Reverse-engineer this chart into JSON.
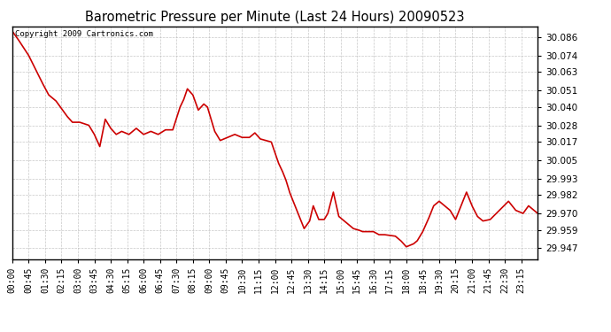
{
  "title": "Barometric Pressure per Minute (Last 24 Hours) 20090523",
  "copyright": "Copyright 2009 Cartronics.com",
  "line_color": "#cc0000",
  "background_color": "#ffffff",
  "plot_bg_color": "#ffffff",
  "grid_color": "#b0b0b0",
  "yticks": [
    29.947,
    29.959,
    29.97,
    29.982,
    29.993,
    30.005,
    30.017,
    30.028,
    30.04,
    30.051,
    30.063,
    30.074,
    30.086
  ],
  "ylim": [
    29.94,
    30.093
  ],
  "xtick_labels": [
    "00:00",
    "00:45",
    "01:30",
    "02:15",
    "03:00",
    "03:45",
    "04:30",
    "05:15",
    "06:00",
    "06:45",
    "07:30",
    "08:15",
    "09:00",
    "09:45",
    "10:30",
    "11:15",
    "12:00",
    "12:45",
    "13:30",
    "14:15",
    "15:00",
    "15:45",
    "16:30",
    "17:15",
    "18:00",
    "18:45",
    "19:30",
    "20:15",
    "21:00",
    "21:45",
    "22:30",
    "23:15"
  ],
  "key_points_x": [
    0,
    15,
    45,
    80,
    100,
    120,
    150,
    165,
    185,
    210,
    225,
    240,
    255,
    270,
    285,
    300,
    320,
    340,
    360,
    380,
    400,
    420,
    440,
    460,
    470,
    480,
    495,
    510,
    525,
    535,
    555,
    570,
    590,
    610,
    630,
    650,
    665,
    680,
    695,
    710,
    720,
    730,
    740,
    750,
    760,
    770,
    780,
    790,
    800,
    815,
    825,
    840,
    855,
    865,
    880,
    895,
    905,
    915,
    925,
    935,
    950,
    960,
    975,
    990,
    1005,
    1020,
    1050,
    1065,
    1080,
    1100,
    1110,
    1125,
    1140,
    1155,
    1170,
    1185,
    1200,
    1215,
    1230,
    1245,
    1260,
    1275,
    1290,
    1310,
    1335,
    1360,
    1380,
    1400,
    1415,
    1430,
    1440
  ],
  "key_points_y": [
    30.09,
    30.085,
    30.074,
    30.057,
    30.048,
    30.044,
    30.034,
    30.03,
    30.03,
    30.028,
    30.022,
    30.014,
    30.032,
    30.026,
    30.022,
    30.024,
    30.022,
    30.026,
    30.022,
    30.024,
    30.022,
    30.025,
    30.025,
    30.04,
    30.045,
    30.052,
    30.048,
    30.038,
    30.042,
    30.04,
    30.024,
    30.018,
    30.02,
    30.022,
    30.02,
    30.02,
    30.023,
    30.019,
    30.018,
    30.017,
    30.01,
    30.003,
    29.998,
    29.992,
    29.984,
    29.978,
    29.972,
    29.966,
    29.96,
    29.965,
    29.975,
    29.966,
    29.966,
    29.97,
    29.984,
    29.968,
    29.966,
    29.964,
    29.962,
    29.96,
    29.959,
    29.958,
    29.958,
    29.958,
    29.956,
    29.956,
    29.955,
    29.952,
    29.948,
    29.95,
    29.952,
    29.958,
    29.966,
    29.975,
    29.978,
    29.975,
    29.972,
    29.966,
    29.975,
    29.984,
    29.975,
    29.968,
    29.965,
    29.966,
    29.972,
    29.978,
    29.972,
    29.97,
    29.975,
    29.972,
    29.97
  ]
}
